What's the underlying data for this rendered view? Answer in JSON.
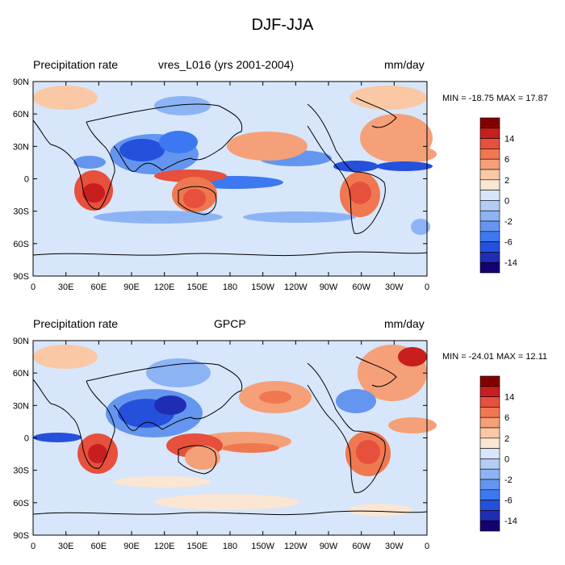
{
  "figure": {
    "title": "DJF-JJA"
  },
  "colors": {
    "palette": [
      "#14006e",
      "#1f2db4",
      "#2550dc",
      "#3c78f0",
      "#6496f0",
      "#8cb4f5",
      "#b4cdf5",
      "#d7e6fa",
      "#fae6d2",
      "#fac8a5",
      "#f5a078",
      "#f07850",
      "#e6503c",
      "#c81e1e",
      "#820000"
    ],
    "land_outline": "#000000",
    "frame": "#000000"
  },
  "colorbar": {
    "labels": [
      "14",
      "6",
      "2",
      "0",
      "-2",
      "-6",
      "-14"
    ]
  },
  "axes": {
    "lat_ticks": [
      "90N",
      "60N",
      "30N",
      "0",
      "30S",
      "60S",
      "90S"
    ],
    "lon_ticks": [
      "0",
      "30E",
      "60E",
      "90E",
      "120E",
      "150E",
      "180",
      "150W",
      "120W",
      "90W",
      "60W",
      "30W",
      "0"
    ]
  },
  "panels": [
    {
      "left_label": "Precipitation rate",
      "center_label": "vres_L016 (yrs 2001-2004)",
      "right_label": "mm/day",
      "minmax": "MIN = -18.75 MAX =  17.87"
    },
    {
      "left_label": "Precipitation rate",
      "center_label": "GPCP",
      "right_label": "mm/day",
      "minmax": "MIN = -24.01 MAX =  12.11"
    }
  ]
}
